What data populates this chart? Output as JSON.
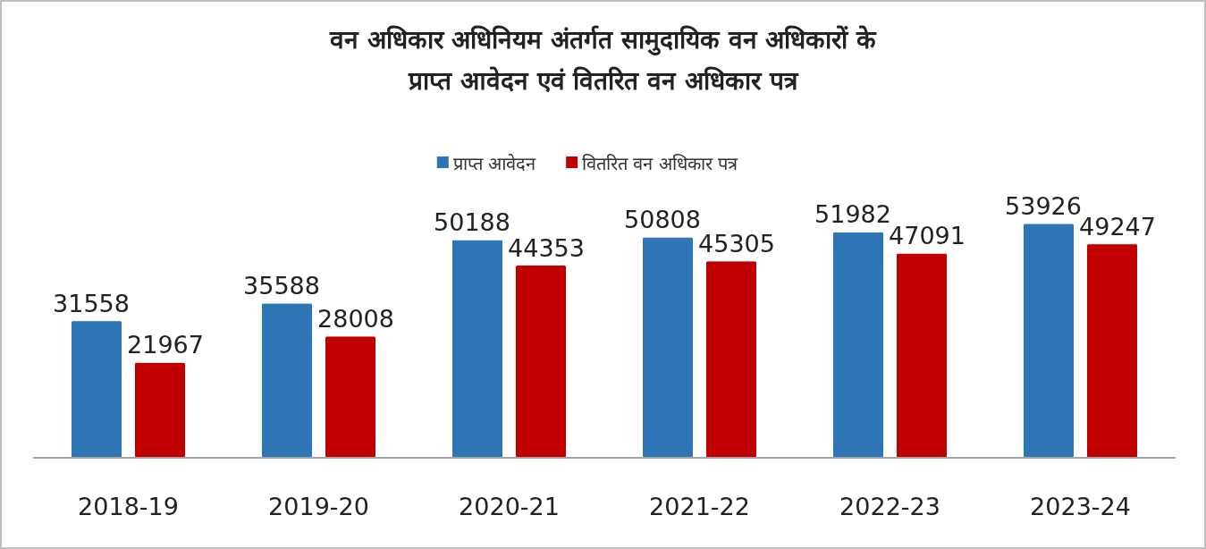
{
  "chart_data": {
    "type": "bar",
    "title": "वन अधिकार अधिनियम अंतर्गत सामुदायिक वन अधिकारों के प्राप्त आवेदन एवं वितरित वन अधिकार पत्र",
    "categories": [
      "2018-19",
      "2019-20",
      "2020-21",
      "2021-22",
      "2022-23",
      "2023-24"
    ],
    "series": [
      {
        "name": "प्राप्त आवेदन",
        "color": "#2e75b6",
        "values": [
          31558,
          35588,
          50188,
          50808,
          51982,
          53926
        ]
      },
      {
        "name": "वितरित वन अधिकार पत्र",
        "color": "#c00000",
        "values": [
          21967,
          28008,
          44353,
          45305,
          47091,
          49247
        ]
      }
    ],
    "data_labels": true,
    "legend": "top"
  }
}
